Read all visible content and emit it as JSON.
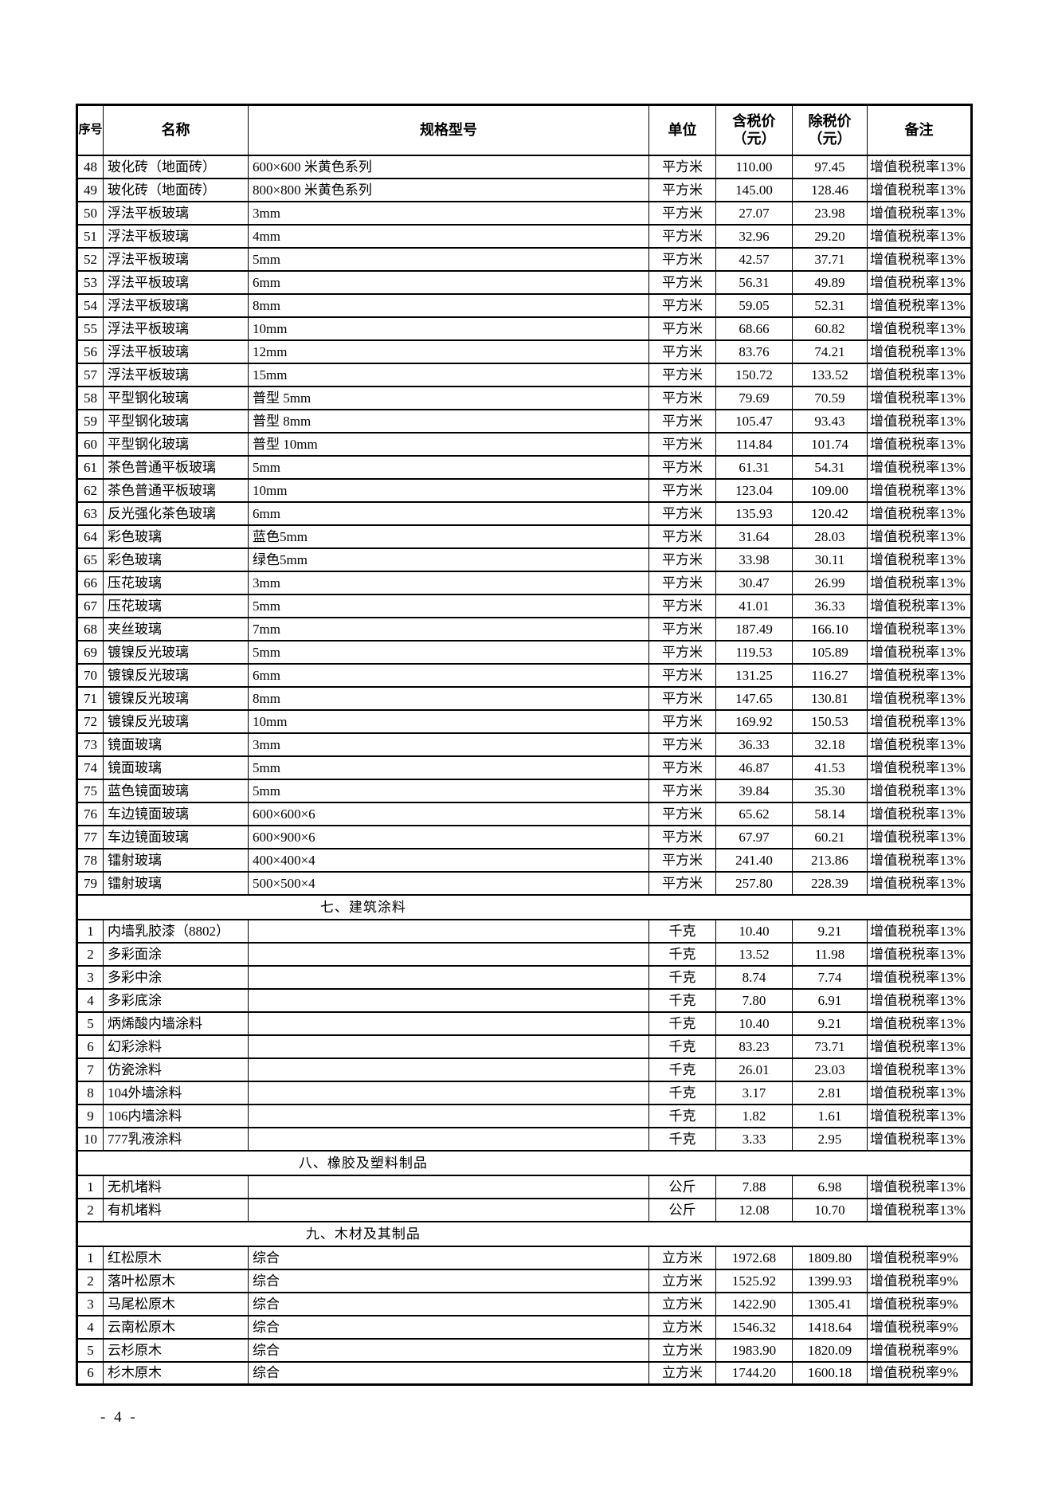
{
  "page": {
    "footer_page_number": "- 4 -"
  },
  "table": {
    "columns": [
      "序号",
      "名称",
      "规格型号",
      "单位",
      "含税价\n（元）",
      "除税价\n（元）",
      "备注"
    ],
    "sections": [
      {
        "title": null,
        "rows": [
          {
            "no": "48",
            "name": "玻化砖（地面砖）",
            "spec": "600×600 米黄色系列",
            "unit": "平方米",
            "price_incl": "110.00",
            "price_excl": "97.45",
            "remark": "增值税税率13%"
          },
          {
            "no": "49",
            "name": "玻化砖（地面砖）",
            "spec": "800×800 米黄色系列",
            "unit": "平方米",
            "price_incl": "145.00",
            "price_excl": "128.46",
            "remark": "增值税税率13%"
          },
          {
            "no": "50",
            "name": "浮法平板玻璃",
            "spec": "3mm",
            "unit": "平方米",
            "price_incl": "27.07",
            "price_excl": "23.98",
            "remark": "增值税税率13%"
          },
          {
            "no": "51",
            "name": "浮法平板玻璃",
            "spec": "4mm",
            "unit": "平方米",
            "price_incl": "32.96",
            "price_excl": "29.20",
            "remark": "增值税税率13%"
          },
          {
            "no": "52",
            "name": "浮法平板玻璃",
            "spec": "5mm",
            "unit": "平方米",
            "price_incl": "42.57",
            "price_excl": "37.71",
            "remark": "增值税税率13%"
          },
          {
            "no": "53",
            "name": "浮法平板玻璃",
            "spec": "6mm",
            "unit": "平方米",
            "price_incl": "56.31",
            "price_excl": "49.89",
            "remark": "增值税税率13%"
          },
          {
            "no": "54",
            "name": "浮法平板玻璃",
            "spec": "8mm",
            "unit": "平方米",
            "price_incl": "59.05",
            "price_excl": "52.31",
            "remark": "增值税税率13%"
          },
          {
            "no": "55",
            "name": "浮法平板玻璃",
            "spec": "10mm",
            "unit": "平方米",
            "price_incl": "68.66",
            "price_excl": "60.82",
            "remark": "增值税税率13%"
          },
          {
            "no": "56",
            "name": "浮法平板玻璃",
            "spec": "12mm",
            "unit": "平方米",
            "price_incl": "83.76",
            "price_excl": "74.21",
            "remark": "增值税税率13%"
          },
          {
            "no": "57",
            "name": "浮法平板玻璃",
            "spec": "15mm",
            "unit": "平方米",
            "price_incl": "150.72",
            "price_excl": "133.52",
            "remark": "增值税税率13%"
          },
          {
            "no": "58",
            "name": "平型钢化玻璃",
            "spec": "普型 5mm",
            "unit": "平方米",
            "price_incl": "79.69",
            "price_excl": "70.59",
            "remark": "增值税税率13%"
          },
          {
            "no": "59",
            "name": "平型钢化玻璃",
            "spec": "普型 8mm",
            "unit": "平方米",
            "price_incl": "105.47",
            "price_excl": "93.43",
            "remark": "增值税税率13%"
          },
          {
            "no": "60",
            "name": "平型钢化玻璃",
            "spec": "普型 10mm",
            "unit": "平方米",
            "price_incl": "114.84",
            "price_excl": "101.74",
            "remark": "增值税税率13%"
          },
          {
            "no": "61",
            "name": "茶色普通平板玻璃",
            "spec": "5mm",
            "unit": "平方米",
            "price_incl": "61.31",
            "price_excl": "54.31",
            "remark": "增值税税率13%"
          },
          {
            "no": "62",
            "name": "茶色普通平板玻璃",
            "spec": "10mm",
            "unit": "平方米",
            "price_incl": "123.04",
            "price_excl": "109.00",
            "remark": "增值税税率13%"
          },
          {
            "no": "63",
            "name": "反光强化茶色玻璃",
            "spec": "6mm",
            "unit": "平方米",
            "price_incl": "135.93",
            "price_excl": "120.42",
            "remark": "增值税税率13%"
          },
          {
            "no": "64",
            "name": "彩色玻璃",
            "spec": "蓝色5mm",
            "unit": "平方米",
            "price_incl": "31.64",
            "price_excl": "28.03",
            "remark": "增值税税率13%"
          },
          {
            "no": "65",
            "name": "彩色玻璃",
            "spec": "绿色5mm",
            "unit": "平方米",
            "price_incl": "33.98",
            "price_excl": "30.11",
            "remark": "增值税税率13%"
          },
          {
            "no": "66",
            "name": "压花玻璃",
            "spec": "3mm",
            "unit": "平方米",
            "price_incl": "30.47",
            "price_excl": "26.99",
            "remark": "增值税税率13%"
          },
          {
            "no": "67",
            "name": "压花玻璃",
            "spec": "5mm",
            "unit": "平方米",
            "price_incl": "41.01",
            "price_excl": "36.33",
            "remark": "增值税税率13%"
          },
          {
            "no": "68",
            "name": "夹丝玻璃",
            "spec": "7mm",
            "unit": "平方米",
            "price_incl": "187.49",
            "price_excl": "166.10",
            "remark": "增值税税率13%"
          },
          {
            "no": "69",
            "name": "镀镍反光玻璃",
            "spec": "5mm",
            "unit": "平方米",
            "price_incl": "119.53",
            "price_excl": "105.89",
            "remark": "增值税税率13%"
          },
          {
            "no": "70",
            "name": "镀镍反光玻璃",
            "spec": "6mm",
            "unit": "平方米",
            "price_incl": "131.25",
            "price_excl": "116.27",
            "remark": "增值税税率13%"
          },
          {
            "no": "71",
            "name": "镀镍反光玻璃",
            "spec": "8mm",
            "unit": "平方米",
            "price_incl": "147.65",
            "price_excl": "130.81",
            "remark": "增值税税率13%"
          },
          {
            "no": "72",
            "name": "镀镍反光玻璃",
            "spec": "10mm",
            "unit": "平方米",
            "price_incl": "169.92",
            "price_excl": "150.53",
            "remark": "增值税税率13%"
          },
          {
            "no": "73",
            "name": "镜面玻璃",
            "spec": "3mm",
            "unit": "平方米",
            "price_incl": "36.33",
            "price_excl": "32.18",
            "remark": "增值税税率13%"
          },
          {
            "no": "74",
            "name": "镜面玻璃",
            "spec": "5mm",
            "unit": "平方米",
            "price_incl": "46.87",
            "price_excl": "41.53",
            "remark": "增值税税率13%"
          },
          {
            "no": "75",
            "name": "蓝色镜面玻璃",
            "spec": "5mm",
            "unit": "平方米",
            "price_incl": "39.84",
            "price_excl": "35.30",
            "remark": "增值税税率13%"
          },
          {
            "no": "76",
            "name": "车边镜面玻璃",
            "spec": "600×600×6",
            "unit": "平方米",
            "price_incl": "65.62",
            "price_excl": "58.14",
            "remark": "增值税税率13%"
          },
          {
            "no": "77",
            "name": "车边镜面玻璃",
            "spec": "600×900×6",
            "unit": "平方米",
            "price_incl": "67.97",
            "price_excl": "60.21",
            "remark": "增值税税率13%"
          },
          {
            "no": "78",
            "name": "镭射玻璃",
            "spec": "400×400×4",
            "unit": "平方米",
            "price_incl": "241.40",
            "price_excl": "213.86",
            "remark": "增值税税率13%"
          },
          {
            "no": "79",
            "name": "镭射玻璃",
            "spec": "500×500×4",
            "unit": "平方米",
            "price_incl": "257.80",
            "price_excl": "228.39",
            "remark": "增值税税率13%"
          }
        ]
      },
      {
        "title": "七、建筑涂料",
        "rows": [
          {
            "no": "1",
            "name": "内墙乳胶漆（8802）",
            "spec": "",
            "unit": "千克",
            "price_incl": "10.40",
            "price_excl": "9.21",
            "remark": "增值税税率13%"
          },
          {
            "no": "2",
            "name": "多彩面涂",
            "spec": "",
            "unit": "千克",
            "price_incl": "13.52",
            "price_excl": "11.98",
            "remark": "增值税税率13%"
          },
          {
            "no": "3",
            "name": "多彩中涂",
            "spec": "",
            "unit": "千克",
            "price_incl": "8.74",
            "price_excl": "7.74",
            "remark": "增值税税率13%"
          },
          {
            "no": "4",
            "name": "多彩底涂",
            "spec": "",
            "unit": "千克",
            "price_incl": "7.80",
            "price_excl": "6.91",
            "remark": "增值税税率13%"
          },
          {
            "no": "5",
            "name": "炳烯酸内墙涂料",
            "spec": "",
            "unit": "千克",
            "price_incl": "10.40",
            "price_excl": "9.21",
            "remark": "增值税税率13%"
          },
          {
            "no": "6",
            "name": "幻彩涂料",
            "spec": "",
            "unit": "千克",
            "price_incl": "83.23",
            "price_excl": "73.71",
            "remark": "增值税税率13%"
          },
          {
            "no": "7",
            "name": "仿瓷涂料",
            "spec": "",
            "unit": "千克",
            "price_incl": "26.01",
            "price_excl": "23.03",
            "remark": "增值税税率13%"
          },
          {
            "no": "8",
            "name": "104外墙涂料",
            "spec": "",
            "unit": "千克",
            "price_incl": "3.17",
            "price_excl": "2.81",
            "remark": "增值税税率13%"
          },
          {
            "no": "9",
            "name": "106内墙涂料",
            "spec": "",
            "unit": "千克",
            "price_incl": "1.82",
            "price_excl": "1.61",
            "remark": "增值税税率13%"
          },
          {
            "no": "10",
            "name": "777乳液涂料",
            "spec": "",
            "unit": "千克",
            "price_incl": "3.33",
            "price_excl": "2.95",
            "remark": "增值税税率13%"
          }
        ]
      },
      {
        "title": "八、橡胶及塑料制品",
        "rows": [
          {
            "no": "1",
            "name": "无机堵料",
            "spec": "",
            "unit": "公斤",
            "price_incl": "7.88",
            "price_excl": "6.98",
            "remark": "增值税税率13%"
          },
          {
            "no": "2",
            "name": "有机堵料",
            "spec": "",
            "unit": "公斤",
            "price_incl": "12.08",
            "price_excl": "10.70",
            "remark": "增值税税率13%"
          }
        ]
      },
      {
        "title": "九、木材及其制品",
        "rows": [
          {
            "no": "1",
            "name": "红松原木",
            "spec": "综合",
            "unit": "立方米",
            "price_incl": "1972.68",
            "price_excl": "1809.80",
            "remark": "增值税税率9%"
          },
          {
            "no": "2",
            "name": "落叶松原木",
            "spec": "综合",
            "unit": "立方米",
            "price_incl": "1525.92",
            "price_excl": "1399.93",
            "remark": "增值税税率9%"
          },
          {
            "no": "3",
            "name": "马尾松原木",
            "spec": "综合",
            "unit": "立方米",
            "price_incl": "1422.90",
            "price_excl": "1305.41",
            "remark": "增值税税率9%"
          },
          {
            "no": "4",
            "name": "云南松原木",
            "spec": "综合",
            "unit": "立方米",
            "price_incl": "1546.32",
            "price_excl": "1418.64",
            "remark": "增值税税率9%"
          },
          {
            "no": "5",
            "name": "云杉原木",
            "spec": "综合",
            "unit": "立方米",
            "price_incl": "1983.90",
            "price_excl": "1820.09",
            "remark": "增值税税率9%"
          },
          {
            "no": "6",
            "name": "杉木原木",
            "spec": "综合",
            "unit": "立方米",
            "price_incl": "1744.20",
            "price_excl": "1600.18",
            "remark": "增值税税率9%"
          }
        ]
      }
    ]
  }
}
